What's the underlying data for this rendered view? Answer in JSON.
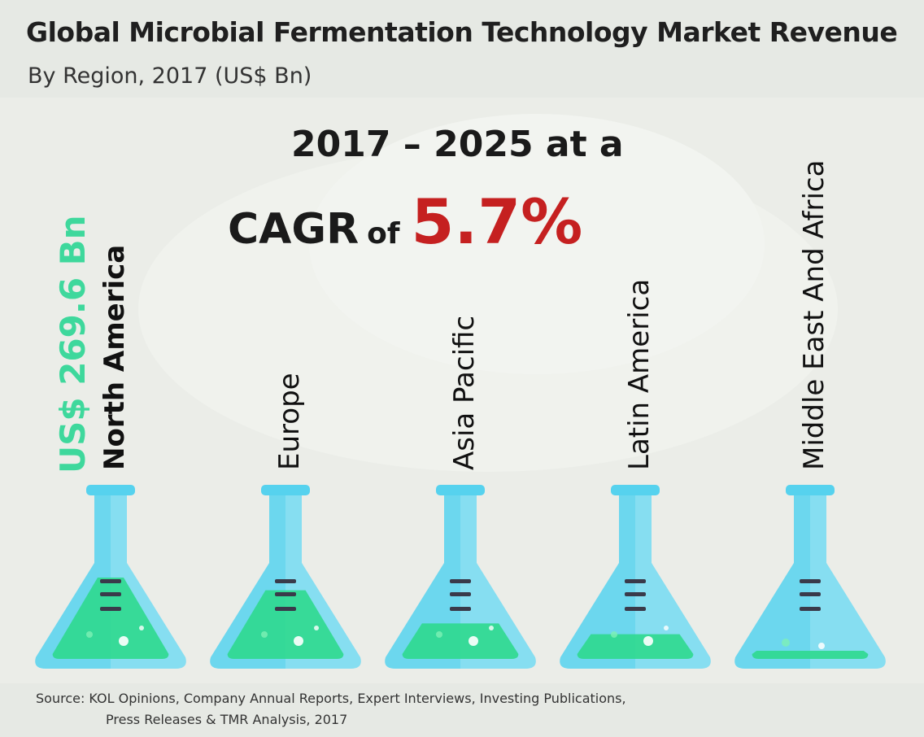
{
  "title": "Global Microbial Fermentation Technology Market Revenue",
  "subtitle": "By Region, 2017 (US$ Bn)",
  "cagr": {
    "line1": "2017 – 2025 at a",
    "word": "CAGR",
    "of": "of",
    "value": "5.7%"
  },
  "colors": {
    "flask_glass": "#56d2ee",
    "flask_liquid": "#2fd98e",
    "total_label": "#3ed89c",
    "cagr_value": "#c52020",
    "marks": "#3a3a4a"
  },
  "chart_data": {
    "type": "bar",
    "style": "flask-fill pictogram",
    "categories": [
      "North America",
      "Europe",
      "Asia Pacific",
      "Latin America",
      "Middle East And Africa"
    ],
    "values": [
      0.85,
      0.72,
      0.38,
      0.27,
      0.1
    ],
    "value_unit": "relative fill level (unlabeled)",
    "annotations": [
      {
        "text": "US$ 269.6 Bn",
        "target": "North America"
      }
    ]
  },
  "source": {
    "line1": "Source: KOL Opinions, Company Annual Reports, Expert Interviews, Investing Publications,",
    "line2": "Press Releases & TMR Analysis, 2017"
  }
}
